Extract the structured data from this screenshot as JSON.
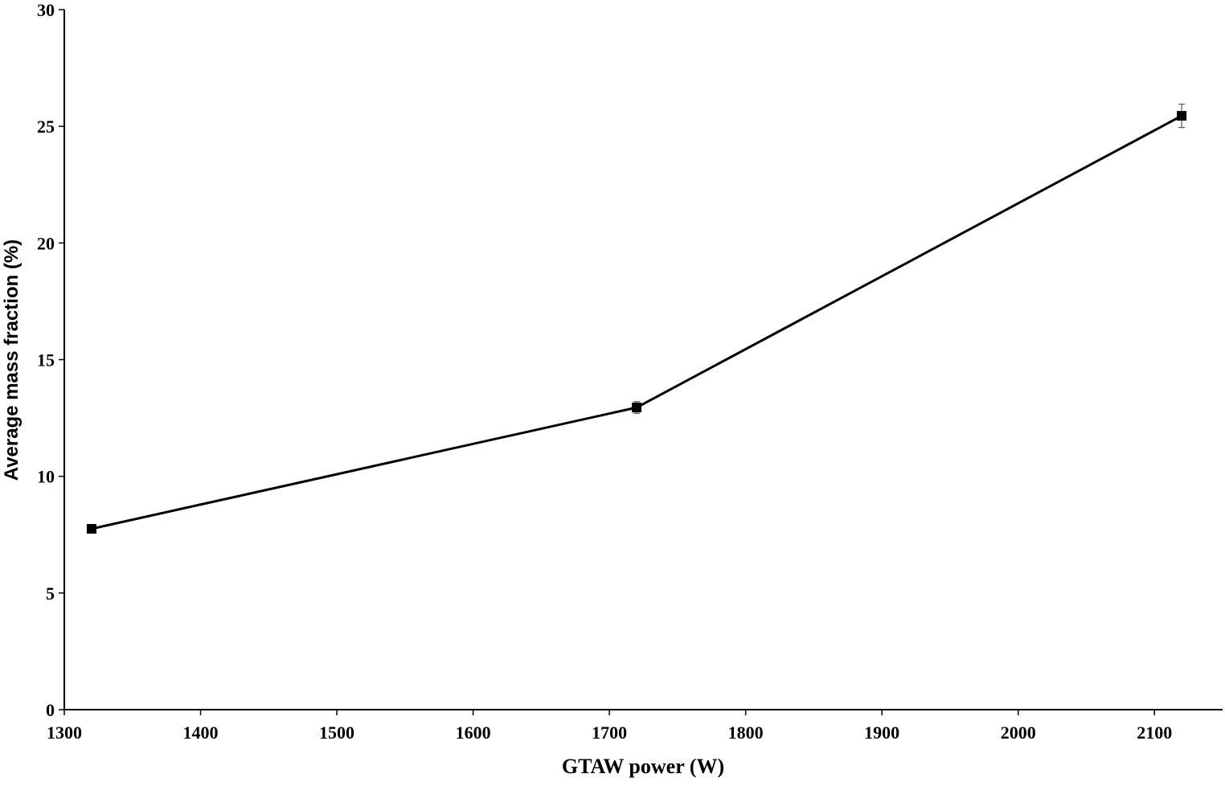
{
  "chart_data": {
    "type": "line",
    "x_label": "GTAW power (W)",
    "y_label": "Average mass fraction (%)",
    "x": [
      1320,
      1720,
      2120
    ],
    "series": [
      {
        "values": [
          7.75,
          12.95,
          25.45
        ],
        "errors": [
          0.1,
          0.25,
          0.5
        ],
        "color": "#000000"
      }
    ],
    "xlim": [
      1300,
      2150
    ],
    "ylim": [
      0,
      30
    ],
    "xticks": [
      1300,
      1400,
      1500,
      1600,
      1700,
      1800,
      1900,
      2000,
      2100
    ],
    "yticks": [
      0,
      5,
      10,
      15,
      20,
      25,
      30
    ]
  }
}
